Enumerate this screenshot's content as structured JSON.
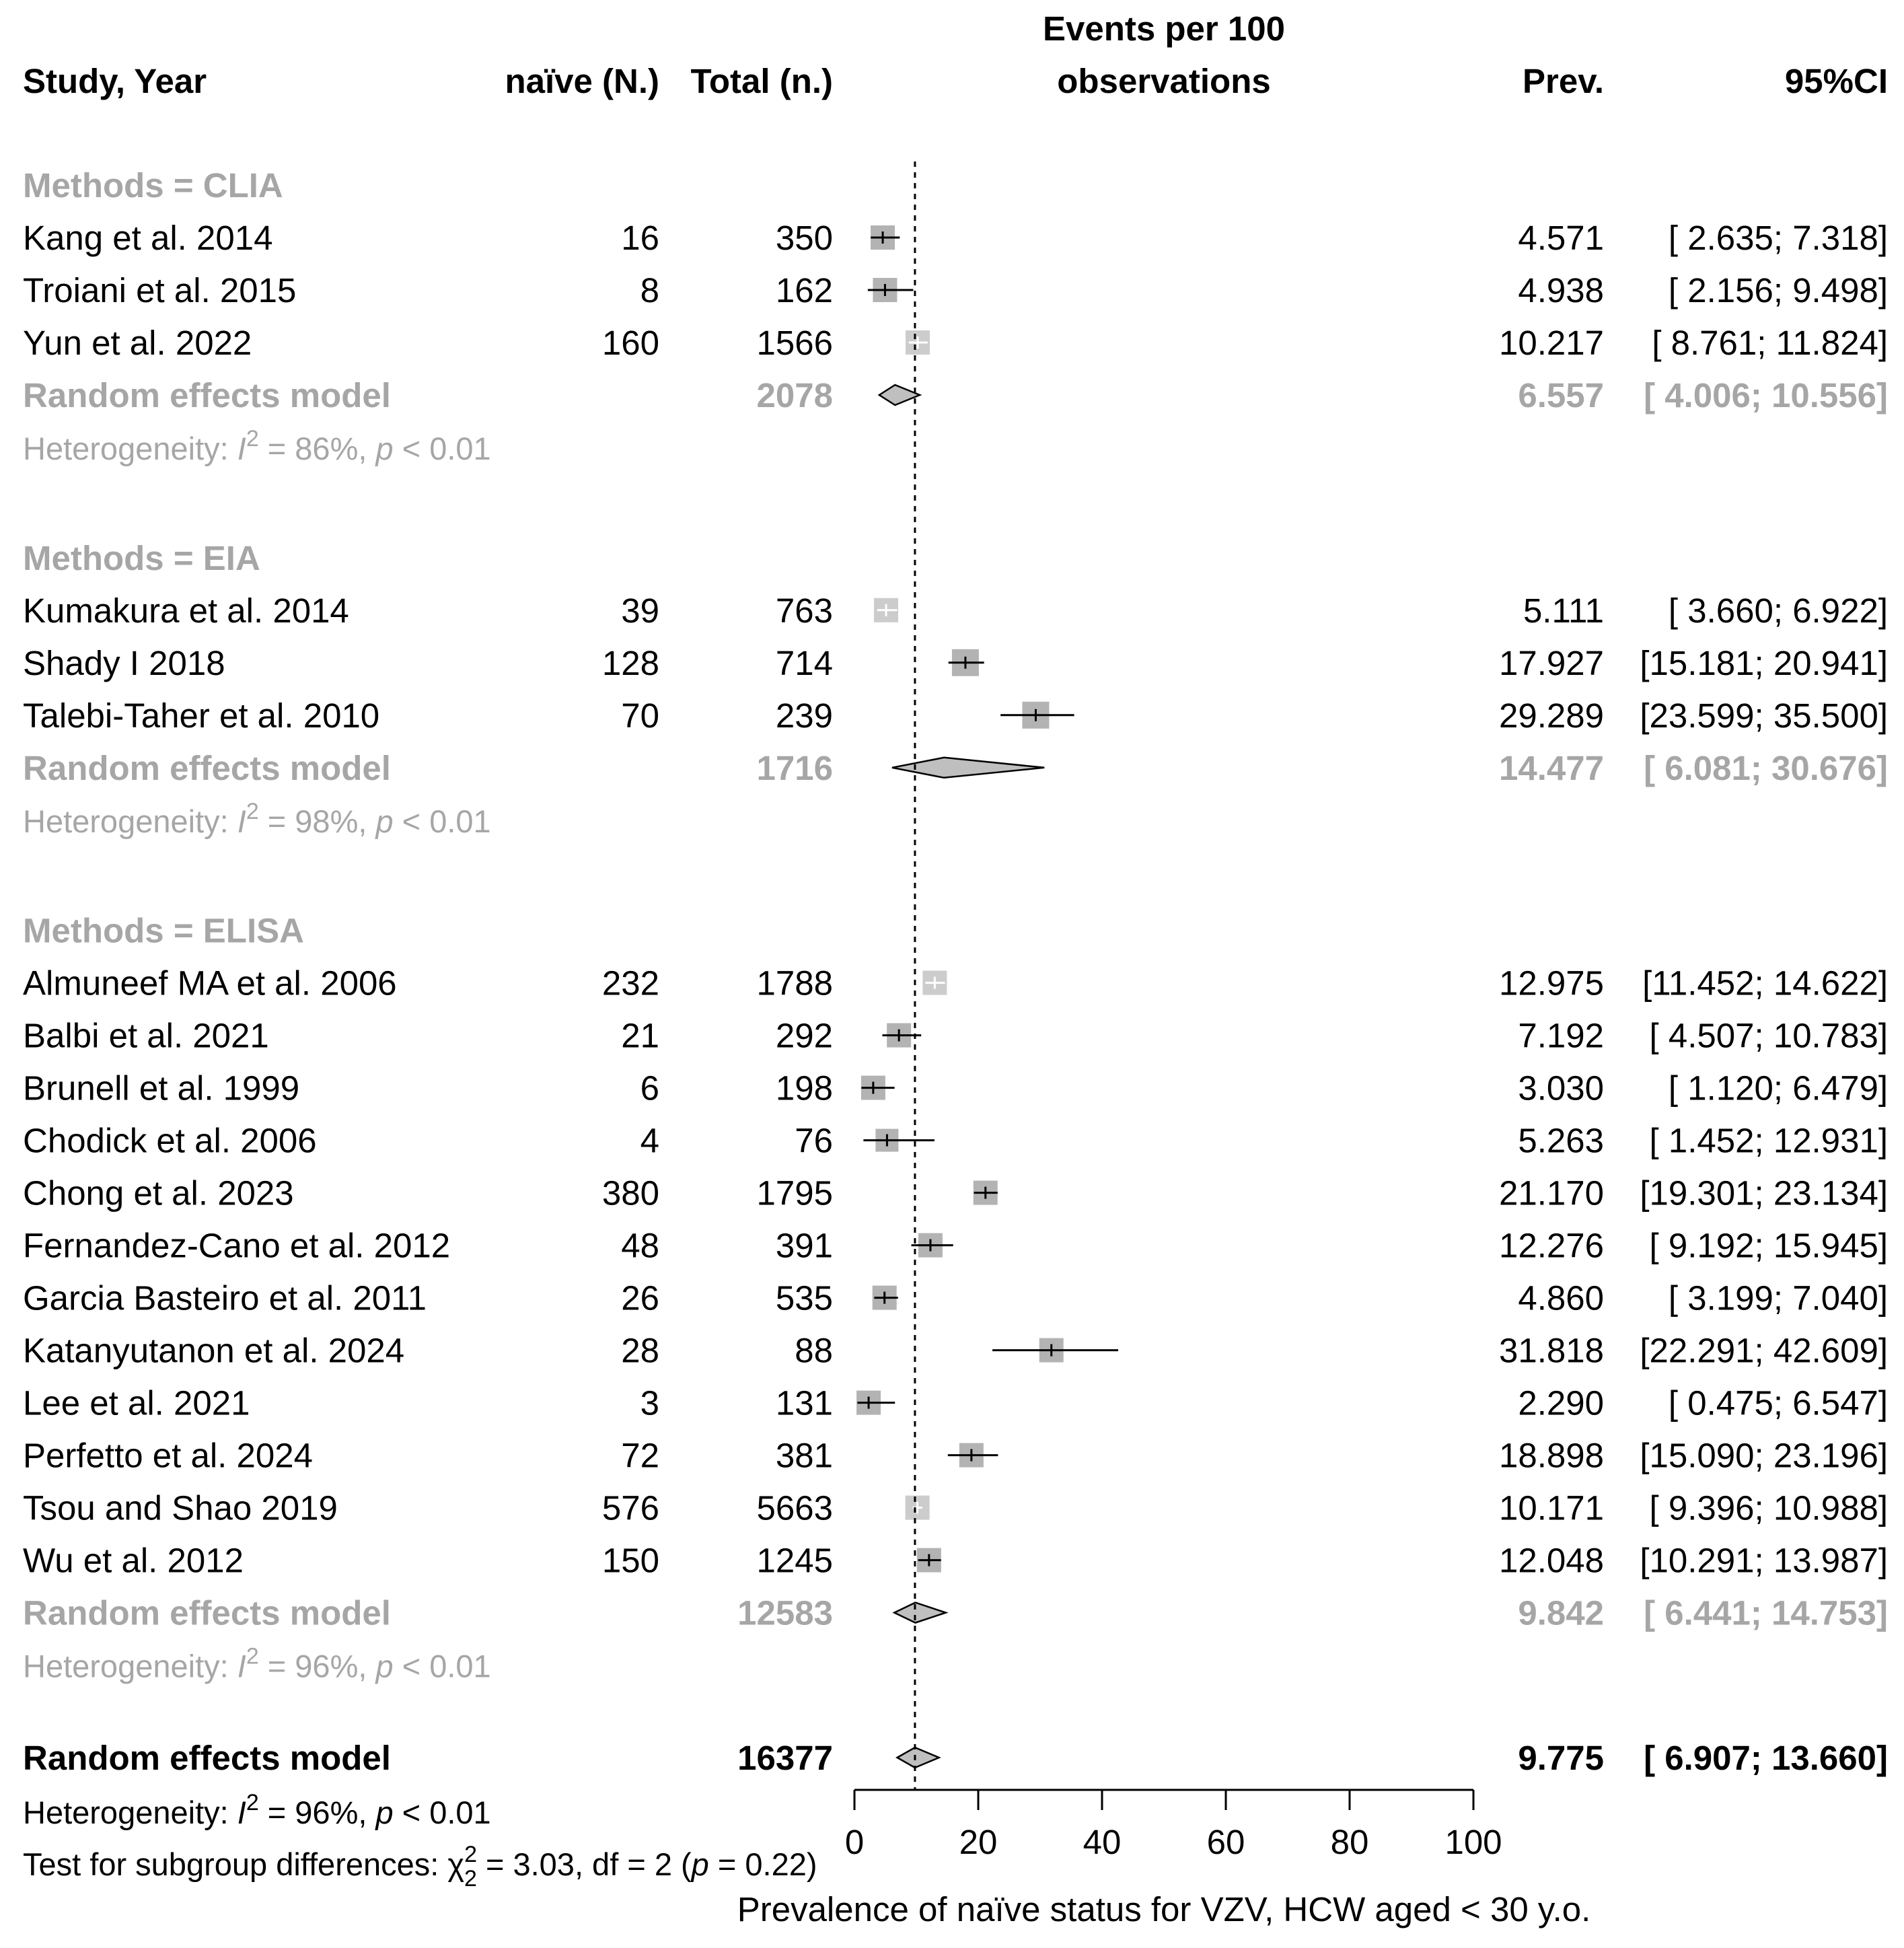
{
  "header": {
    "study": "Study, Year",
    "naive": "naïve (N.)",
    "total": "Total (n.)",
    "plot_line1": "Events per 100",
    "plot_line2": "observations",
    "prev": "Prev.",
    "ci": "95%CI"
  },
  "groups": [
    {
      "label": "Methods = CLIA",
      "studies": [
        {
          "name": "Kang et al. 2014",
          "naive": "16",
          "total": "350",
          "prev": 4.571,
          "lo": 2.635,
          "hi": 7.318,
          "prev_text": "4.571",
          "ci_text": "[ 2.635;  7.318]",
          "weight": 0.9,
          "color": "#b3b3b3"
        },
        {
          "name": "Troiani et al. 2015",
          "naive": "8",
          "total": "162",
          "prev": 4.938,
          "lo": 2.156,
          "hi": 9.498,
          "prev_text": "4.938",
          "ci_text": "[ 2.156;  9.498]",
          "weight": 0.9,
          "color": "#b3b3b3"
        },
        {
          "name": "Yun et al. 2022",
          "naive": "160",
          "total": "1566",
          "prev": 10.217,
          "lo": 8.761,
          "hi": 11.824,
          "prev_text": "10.217",
          "ci_text": "[ 8.761; 11.824]",
          "weight": 0.9,
          "color": "#cccccc"
        }
      ],
      "summary": {
        "label": "Random effects model",
        "total": "2078",
        "prev": 6.557,
        "lo": 4.006,
        "hi": 10.556,
        "prev_text": "6.557",
        "ci_text": "[ 4.006; 10.556]"
      },
      "heterogeneity": {
        "prefix": "Heterogeneity: ",
        "I": "I",
        "sup": "2",
        "rest": " = 86%, ",
        "p": "p",
        "tail": " < 0.01"
      }
    },
    {
      "label": "Methods = EIA",
      "studies": [
        {
          "name": "Kumakura et al. 2014",
          "naive": "39",
          "total": "763",
          "prev": 5.111,
          "lo": 3.66,
          "hi": 6.922,
          "prev_text": "5.111",
          "ci_text": "[ 3.660;  6.922]",
          "weight": 0.9,
          "color": "#cccccc"
        },
        {
          "name": "Shady I 2018",
          "naive": "128",
          "total": "714",
          "prev": 17.927,
          "lo": 15.181,
          "hi": 20.941,
          "prev_text": "17.927",
          "ci_text": "[15.181; 20.941]",
          "weight": 1.0,
          "color": "#b3b3b3"
        },
        {
          "name": "Talebi-Taher et al. 2010",
          "naive": "70",
          "total": "239",
          "prev": 29.289,
          "lo": 23.599,
          "hi": 35.5,
          "prev_text": "29.289",
          "ci_text": "[23.599; 35.500]",
          "weight": 1.0,
          "color": "#b3b3b3"
        }
      ],
      "summary": {
        "label": "Random effects model",
        "total": "1716",
        "prev": 14.477,
        "lo": 6.081,
        "hi": 30.676,
        "prev_text": "14.477",
        "ci_text": "[ 6.081; 30.676]"
      },
      "heterogeneity": {
        "prefix": "Heterogeneity: ",
        "I": "I",
        "sup": "2",
        "rest": " = 98%, ",
        "p": "p",
        "tail": " < 0.01"
      }
    },
    {
      "label": "Methods = ELISA",
      "studies": [
        {
          "name": "Almuneef MA et al. 2006",
          "naive": "232",
          "total": "1788",
          "prev": 12.975,
          "lo": 11.452,
          "hi": 14.622,
          "prev_text": "12.975",
          "ci_text": "[11.452; 14.622]",
          "weight": 0.9,
          "color": "#cccccc"
        },
        {
          "name": "Balbi et al.  2021",
          "naive": "21",
          "total": "292",
          "prev": 7.192,
          "lo": 4.507,
          "hi": 10.783,
          "prev_text": "7.192",
          "ci_text": "[ 4.507; 10.783]",
          "weight": 0.9,
          "color": "#b3b3b3"
        },
        {
          "name": "Brunell et al. 1999",
          "naive": "6",
          "total": "198",
          "prev": 3.03,
          "lo": 1.12,
          "hi": 6.479,
          "prev_text": "3.030",
          "ci_text": "[ 1.120;  6.479]",
          "weight": 0.9,
          "color": "#b3b3b3"
        },
        {
          "name": "Chodick et al. 2006",
          "naive": "4",
          "total": "76",
          "prev": 5.263,
          "lo": 1.452,
          "hi": 12.931,
          "prev_text": "5.263",
          "ci_text": "[ 1.452; 12.931]",
          "weight": 0.85,
          "color": "#b3b3b3"
        },
        {
          "name": "Chong et al. 2023",
          "naive": "380",
          "total": "1795",
          "prev": 21.17,
          "lo": 19.301,
          "hi": 23.134,
          "prev_text": "21.170",
          "ci_text": "[19.301; 23.134]",
          "weight": 0.9,
          "color": "#b3b3b3"
        },
        {
          "name": "Fernandez-Cano et al. 2012",
          "naive": "48",
          "total": "391",
          "prev": 12.276,
          "lo": 9.192,
          "hi": 15.945,
          "prev_text": "12.276",
          "ci_text": "[ 9.192; 15.945]",
          "weight": 0.9,
          "color": "#b3b3b3"
        },
        {
          "name": "Garcia Basteiro et al. 2011",
          "naive": "26",
          "total": "535",
          "prev": 4.86,
          "lo": 3.199,
          "hi": 7.04,
          "prev_text": "4.860",
          "ci_text": "[ 3.199;  7.040]",
          "weight": 0.9,
          "color": "#b3b3b3"
        },
        {
          "name": "Katanyutanon et al. 2024",
          "naive": "28",
          "total": "88",
          "prev": 31.818,
          "lo": 22.291,
          "hi": 42.609,
          "prev_text": "31.818",
          "ci_text": "[22.291; 42.609]",
          "weight": 0.9,
          "color": "#b3b3b3"
        },
        {
          "name": "Lee et al. 2021",
          "naive": "3",
          "total": "131",
          "prev": 2.29,
          "lo": 0.475,
          "hi": 6.547,
          "prev_text": "2.290",
          "ci_text": "[ 0.475;  6.547]",
          "weight": 0.9,
          "color": "#b3b3b3"
        },
        {
          "name": "Perfetto et al. 2024",
          "naive": "72",
          "total": "381",
          "prev": 18.898,
          "lo": 15.09,
          "hi": 23.196,
          "prev_text": "18.898",
          "ci_text": "[15.090; 23.196]",
          "weight": 0.9,
          "color": "#b3b3b3"
        },
        {
          "name": "Tsou and Shao 2019",
          "naive": "576",
          "total": "5663",
          "prev": 10.171,
          "lo": 9.396,
          "hi": 10.988,
          "prev_text": "10.171",
          "ci_text": "[ 9.396; 10.988]",
          "weight": 0.9,
          "color": "#cccccc"
        },
        {
          "name": "Wu et al. 2012",
          "naive": "150",
          "total": "1245",
          "prev": 12.048,
          "lo": 10.291,
          "hi": 13.987,
          "prev_text": "12.048",
          "ci_text": "[10.291; 13.987]",
          "weight": 0.9,
          "color": "#b3b3b3"
        }
      ],
      "summary": {
        "label": "Random effects model",
        "total": "12583",
        "prev": 9.842,
        "lo": 6.441,
        "hi": 14.753,
        "prev_text": "9.842",
        "ci_text": "[ 6.441; 14.753]"
      },
      "heterogeneity": {
        "prefix": "Heterogeneity: ",
        "I": "I",
        "sup": "2",
        "rest": " = 96%, ",
        "p": "p",
        "tail": " < 0.01"
      }
    }
  ],
  "overall": {
    "label": "Random effects model",
    "total": "16377",
    "prev": 9.775,
    "lo": 6.907,
    "hi": 13.66,
    "prev_text": "9.775",
    "ci_text": "[ 6.907; 13.660]",
    "heterogeneity": {
      "prefix": "Heterogeneity: ",
      "I": "I",
      "sup": "2",
      "rest": " = 96%, ",
      "p": "p",
      "tail": " < 0.01"
    },
    "subgroup_test": {
      "prefix": "Test for subgroup differences: ",
      "chi": "χ",
      "chi_sup": "2",
      "chi_sub": "2",
      "rest": " = 3.03, df = 2 (",
      "p": "p",
      "tail": " = 0.22)"
    }
  },
  "chart_data": {
    "type": "forest",
    "title": "Events per 100 observations",
    "xlabel": "Prevalence of naïve status for VZV, HCW aged < 30 y.o.",
    "xlim": [
      0,
      100
    ],
    "ticks": [
      0,
      20,
      40,
      60,
      80,
      100
    ],
    "tick_labels": [
      "0",
      "20",
      "40",
      "60",
      "80",
      "100"
    ],
    "reference_line": 9.775
  }
}
